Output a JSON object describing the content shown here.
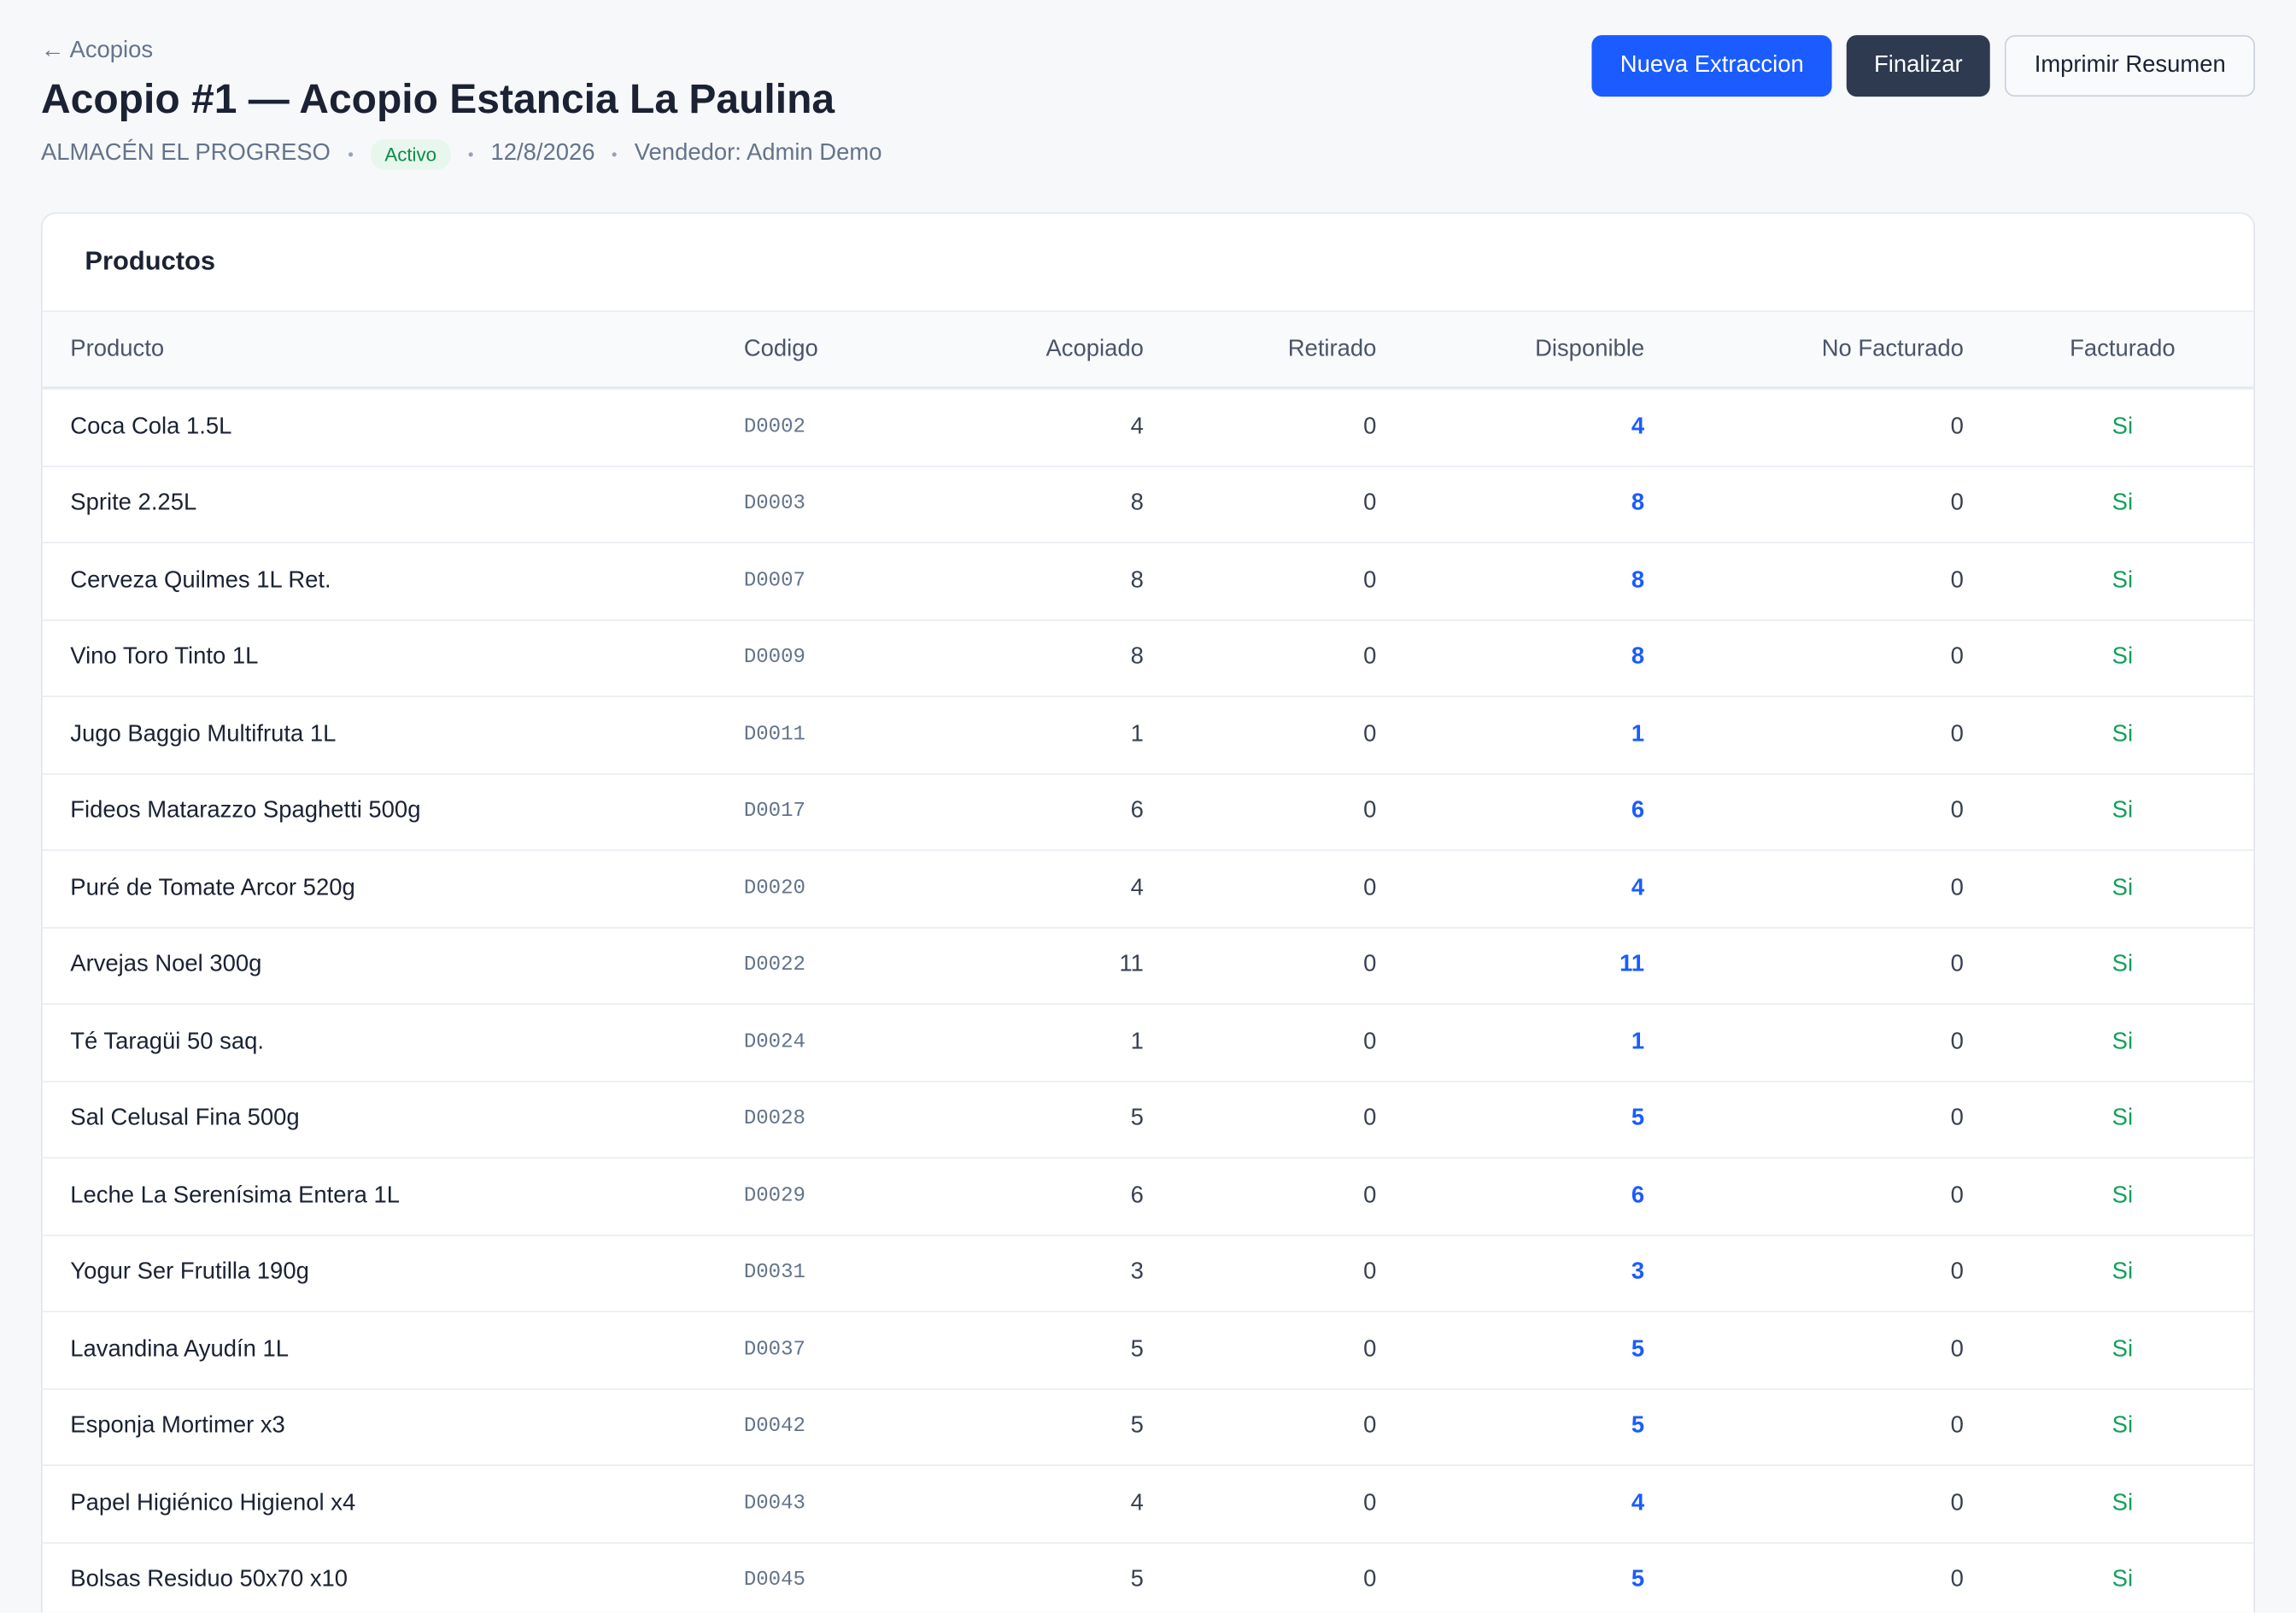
{
  "header": {
    "back": "← Acopios",
    "title": "Acopio #1 — Acopio Estancia La Paulina",
    "store": "ALMACÉN EL PROGRESO",
    "status": "Activo",
    "date": "12/8/2026",
    "vendor": "Vendedor: Admin Demo"
  },
  "buttons": [
    "Nueva Extraccion",
    "Finalizar",
    "Imprimir Resumen"
  ],
  "table": {
    "title": "Productos",
    "columns": [
      "Producto",
      "Codigo",
      "Acopiado",
      "Retirado",
      "Disponible",
      "No Facturado",
      "Facturado"
    ],
    "rows": [
      [
        "Coca Cola 1.5L",
        "D0002",
        4,
        0,
        4,
        0,
        "Si"
      ],
      [
        "Sprite 2.25L",
        "D0003",
        8,
        0,
        8,
        0,
        "Si"
      ],
      [
        "Cerveza Quilmes 1L Ret.",
        "D0007",
        8,
        0,
        8,
        0,
        "Si"
      ],
      [
        "Vino Toro Tinto 1L",
        "D0009",
        8,
        0,
        8,
        0,
        "Si"
      ],
      [
        "Jugo Baggio Multifruta 1L",
        "D0011",
        1,
        0,
        1,
        0,
        "Si"
      ],
      [
        "Fideos Matarazzo Spaghetti 500g",
        "D0017",
        6,
        0,
        6,
        0,
        "Si"
      ],
      [
        "Puré de Tomate Arcor 520g",
        "D0020",
        4,
        0,
        4,
        0,
        "Si"
      ],
      [
        "Arvejas Noel 300g",
        "D0022",
        11,
        0,
        11,
        0,
        "Si"
      ],
      [
        "Té Taragüi 50 saq.",
        "D0024",
        1,
        0,
        1,
        0,
        "Si"
      ],
      [
        "Sal Celusal Fina 500g",
        "D0028",
        5,
        0,
        5,
        0,
        "Si"
      ],
      [
        "Leche La Serenísima Entera 1L",
        "D0029",
        6,
        0,
        6,
        0,
        "Si"
      ],
      [
        "Yogur Ser Frutilla 190g",
        "D0031",
        3,
        0,
        3,
        0,
        "Si"
      ],
      [
        "Lavandina Ayudín 1L",
        "D0037",
        5,
        0,
        5,
        0,
        "Si"
      ],
      [
        "Esponja Mortimer x3",
        "D0042",
        5,
        0,
        5,
        0,
        "Si"
      ],
      [
        "Papel Higiénico Higienol x4",
        "D0043",
        4,
        0,
        4,
        0,
        "Si"
      ],
      [
        "Bolsas Residuo 50x70 x10",
        "D0045",
        5,
        0,
        5,
        0,
        "Si"
      ]
    ]
  }
}
